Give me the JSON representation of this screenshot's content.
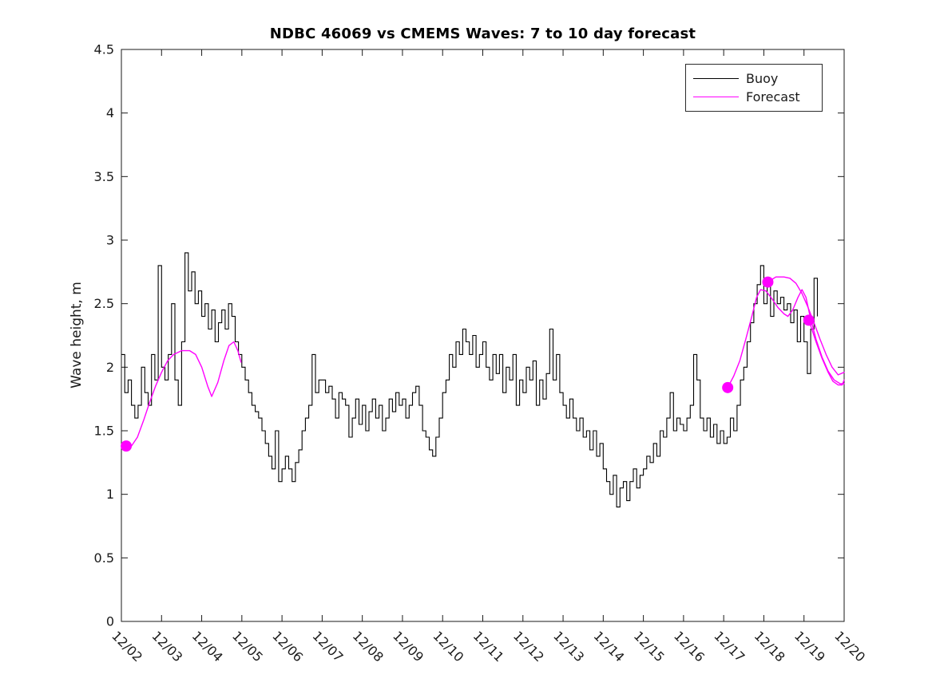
{
  "title": "NDBC 46069 vs CMEMS Waves: 7 to 10 day forecast",
  "y_axis_title": "Wave height, m",
  "legend": {
    "items": [
      {
        "label": "Buoy",
        "color": "#000000"
      },
      {
        "label": "Forecast",
        "color": "#ff00ff"
      }
    ]
  },
  "axes": {
    "x_origin_date": "12/02",
    "xlim_days": [
      0,
      18
    ],
    "ylim": [
      0,
      4.5
    ],
    "xtick_days": [
      0,
      1,
      2,
      3,
      4,
      5,
      6,
      7,
      8,
      9,
      10,
      11,
      12,
      13,
      14,
      15,
      16,
      17,
      18
    ],
    "xticklabels": [
      "12/02",
      "12/03",
      "12/04",
      "12/05",
      "12/06",
      "12/07",
      "12/08",
      "12/09",
      "12/10",
      "12/11",
      "12/12",
      "12/13",
      "12/14",
      "12/15",
      "12/16",
      "12/17",
      "12/18",
      "12/19",
      "12/20"
    ],
    "yticks": [
      0,
      0.5,
      1,
      1.5,
      2,
      2.5,
      3,
      3.5,
      4,
      4.5
    ],
    "yticklabels": [
      "0",
      "0.5",
      "1",
      "1.5",
      "2",
      "2.5",
      "3",
      "3.5",
      "4",
      "4.5"
    ],
    "grid": false,
    "box": true,
    "tick_dir": "in"
  },
  "chart_data": {
    "type": "line",
    "title": "NDBC 46069 vs CMEMS Waves: 7 to 10 day forecast",
    "xlabel": "",
    "ylabel": "Wave height, m",
    "x_unit": "days since 12/02",
    "ylim": [
      0,
      4.5
    ],
    "legend_position": "top-right-inside",
    "series": [
      {
        "name": "Buoy",
        "color": "#000000",
        "style": "step",
        "x_start_day": 0,
        "x_step_days": 0.083333,
        "values": [
          2.1,
          1.8,
          1.9,
          1.7,
          1.6,
          1.7,
          2.0,
          1.8,
          1.7,
          2.1,
          1.9,
          2.8,
          2.0,
          1.9,
          2.1,
          2.5,
          1.9,
          1.7,
          2.2,
          2.9,
          2.6,
          2.75,
          2.5,
          2.6,
          2.4,
          2.5,
          2.3,
          2.45,
          2.2,
          2.35,
          2.45,
          2.3,
          2.5,
          2.4,
          2.2,
          2.1,
          2.0,
          1.9,
          1.8,
          1.7,
          1.65,
          1.6,
          1.5,
          1.4,
          1.3,
          1.2,
          1.5,
          1.1,
          1.2,
          1.3,
          1.2,
          1.1,
          1.25,
          1.35,
          1.5,
          1.6,
          1.7,
          2.1,
          1.8,
          1.9,
          1.9,
          1.8,
          1.85,
          1.75,
          1.6,
          1.8,
          1.75,
          1.7,
          1.45,
          1.6,
          1.75,
          1.55,
          1.7,
          1.5,
          1.65,
          1.75,
          1.6,
          1.7,
          1.5,
          1.6,
          1.75,
          1.65,
          1.8,
          1.7,
          1.75,
          1.6,
          1.7,
          1.8,
          1.85,
          1.7,
          1.5,
          1.45,
          1.35,
          1.3,
          1.45,
          1.6,
          1.8,
          1.9,
          2.1,
          2.0,
          2.2,
          2.1,
          2.3,
          2.2,
          2.1,
          2.25,
          2.0,
          2.1,
          2.2,
          2.0,
          1.9,
          2.1,
          1.95,
          2.1,
          1.8,
          2.0,
          1.9,
          2.1,
          1.7,
          1.9,
          1.8,
          2.0,
          1.9,
          2.05,
          1.7,
          1.9,
          1.75,
          1.95,
          2.3,
          1.9,
          2.1,
          1.8,
          1.7,
          1.6,
          1.75,
          1.6,
          1.5,
          1.6,
          1.45,
          1.5,
          1.35,
          1.5,
          1.3,
          1.4,
          1.2,
          1.1,
          1.0,
          1.15,
          0.9,
          1.05,
          1.1,
          0.95,
          1.1,
          1.2,
          1.05,
          1.15,
          1.2,
          1.3,
          1.25,
          1.4,
          1.3,
          1.5,
          1.45,
          1.6,
          1.8,
          1.5,
          1.6,
          1.55,
          1.5,
          1.6,
          1.7,
          2.1,
          1.9,
          1.6,
          1.5,
          1.6,
          1.45,
          1.55,
          1.4,
          1.5,
          1.4,
          1.45,
          1.6,
          1.5,
          1.7,
          1.9,
          2.0,
          2.2,
          2.35,
          2.5,
          2.65,
          2.8,
          2.5,
          2.65,
          2.4,
          2.6,
          2.5,
          2.55,
          2.45,
          2.5,
          2.35,
          2.45,
          2.2,
          2.4,
          2.2,
          1.95,
          2.3,
          2.7,
          2.4
        ]
      },
      {
        "name": "Forecast run 1",
        "color": "#ff00ff",
        "style": "smooth",
        "points": [
          [
            0.12,
            1.38
          ],
          [
            0.25,
            1.38
          ],
          [
            0.4,
            1.45
          ],
          [
            0.55,
            1.58
          ],
          [
            0.7,
            1.72
          ],
          [
            0.85,
            1.85
          ],
          [
            1.0,
            1.96
          ],
          [
            1.15,
            2.05
          ],
          [
            1.3,
            2.1
          ],
          [
            1.5,
            2.13
          ],
          [
            1.7,
            2.13
          ],
          [
            1.85,
            2.1
          ],
          [
            2.0,
            2.0
          ],
          [
            2.15,
            1.85
          ],
          [
            2.25,
            1.77
          ],
          [
            2.4,
            1.88
          ],
          [
            2.55,
            2.05
          ],
          [
            2.68,
            2.17
          ],
          [
            2.8,
            2.2
          ],
          [
            2.9,
            2.13
          ],
          [
            2.98,
            2.04
          ]
        ]
      },
      {
        "name": "Forecast run 2",
        "color": "#ff00ff",
        "style": "smooth",
        "points": [
          [
            15.1,
            1.84
          ],
          [
            15.25,
            1.93
          ],
          [
            15.4,
            2.05
          ],
          [
            15.55,
            2.22
          ],
          [
            15.7,
            2.4
          ],
          [
            15.82,
            2.55
          ],
          [
            15.92,
            2.61
          ],
          [
            16.05,
            2.6
          ],
          [
            16.2,
            2.54
          ],
          [
            16.35,
            2.47
          ],
          [
            16.5,
            2.42
          ],
          [
            16.6,
            2.4
          ],
          [
            16.72,
            2.45
          ],
          [
            16.85,
            2.55
          ],
          [
            16.95,
            2.61
          ],
          [
            17.05,
            2.55
          ],
          [
            17.15,
            2.4
          ],
          [
            17.3,
            2.22
          ],
          [
            17.45,
            2.08
          ],
          [
            17.6,
            1.97
          ],
          [
            17.75,
            1.9
          ],
          [
            17.9,
            1.87
          ],
          [
            18.0,
            1.87
          ]
        ]
      },
      {
        "name": "Forecast run 3",
        "color": "#ff00ff",
        "style": "smooth",
        "points": [
          [
            16.1,
            2.67
          ],
          [
            16.3,
            2.71
          ],
          [
            16.5,
            2.71
          ],
          [
            16.65,
            2.7
          ],
          [
            16.8,
            2.66
          ],
          [
            16.95,
            2.58
          ],
          [
            17.1,
            2.47
          ],
          [
            17.25,
            2.35
          ],
          [
            17.4,
            2.22
          ],
          [
            17.55,
            2.1
          ],
          [
            17.7,
            2.0
          ],
          [
            17.85,
            1.94
          ],
          [
            18.0,
            1.96
          ]
        ]
      },
      {
        "name": "Forecast run 4",
        "color": "#ff00ff",
        "style": "smooth",
        "points": [
          [
            17.12,
            2.37
          ],
          [
            17.3,
            2.2
          ],
          [
            17.45,
            2.07
          ],
          [
            17.6,
            1.96
          ],
          [
            17.72,
            1.89
          ],
          [
            17.85,
            1.86
          ],
          [
            17.95,
            1.86
          ],
          [
            18.0,
            1.9
          ]
        ]
      }
    ],
    "markers": {
      "name": "Forecast start points",
      "color": "#ff00ff",
      "points": [
        [
          0.12,
          1.38
        ],
        [
          15.1,
          1.84
        ],
        [
          16.1,
          2.67
        ],
        [
          17.12,
          2.37
        ]
      ]
    }
  },
  "colors": {
    "buoy": "#000000",
    "forecast": "#ff00ff",
    "axis": "#1a1a1a",
    "background": "#ffffff"
  }
}
